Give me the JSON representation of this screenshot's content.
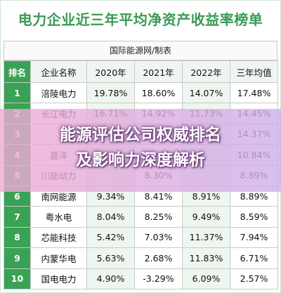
{
  "title": "电力企业近三年平均净资产收益率榜单",
  "source": "国际能源网/制表",
  "columns": [
    "排名",
    "企业名称",
    "2020年",
    "2021年",
    "2022年",
    "三年均值"
  ],
  "rows": [
    [
      "1",
      "涪陵电力",
      "19.78%",
      "18.60%",
      "14.07%",
      "17.48%"
    ],
    [
      "2",
      "长江电力",
      "16.71%",
      "14.92%",
      "11.73%",
      "14.45%"
    ],
    [
      "3",
      "",
      "",
      "",
      "",
      "14.37%"
    ],
    [
      "4",
      "嘉泽",
      "",
      "",
      "",
      "10.84%"
    ],
    [
      "5",
      "川能动力",
      "",
      "8.30%",
      "",
      "8.89%"
    ],
    [
      "6",
      "南网能源",
      "9.34%",
      "8.41%",
      "8.91%",
      "8.89%"
    ],
    [
      "7",
      "粤水电",
      "8.04%",
      "8.25%",
      "9.49%",
      "8.59%"
    ],
    [
      "8",
      "芯能科技",
      "5.42%",
      "7.03%",
      "11.37%",
      "7.94%"
    ],
    [
      "9",
      "内蒙华电",
      "5.63%",
      "2.68%",
      "11.83%",
      "6.71%"
    ],
    [
      "10",
      "国电电力",
      "4.90%",
      "-3.29%",
      "6.09%",
      "2.57%"
    ]
  ],
  "overlay": {
    "line1": "能源评估公司权威排名",
    "line2": "及影响力深度解析"
  },
  "colors": {
    "accent": "#3aa254",
    "title": "#3a9a54",
    "shade": "#eef6ef"
  }
}
